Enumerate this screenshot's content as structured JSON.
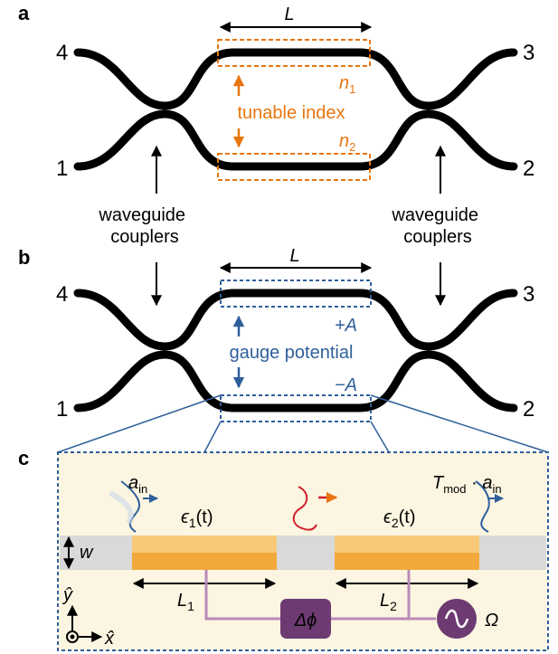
{
  "panels": {
    "a": {
      "letter": "a",
      "length_label": "L",
      "ports": {
        "p4": "4",
        "p3": "3",
        "p1": "1",
        "p2": "2"
      },
      "n1_base": "n",
      "n1_sub": "1",
      "n2_base": "n",
      "n2_sub": "2",
      "middle_label": "tunable index",
      "left_label_line1": "waveguide",
      "left_label_line2": "couplers",
      "right_label_line1": "waveguide",
      "right_label_line2": "couplers"
    },
    "b": {
      "letter": "b",
      "length_label": "L",
      "ports": {
        "p4": "4",
        "p3": "3",
        "p1": "1",
        "p2": "2"
      },
      "plus_label": "+A",
      "minus_label": "−A",
      "middle_label": "gauge potential"
    },
    "c": {
      "letter": "c",
      "a_in_base": "a",
      "a_in_sub": "in",
      "t_mod_base": "T",
      "t_mod_sub": "mod",
      "t_mod_dot": "·",
      "t_mod_a_base": "a",
      "t_mod_a_sub": "in",
      "eps1": "ϵ",
      "eps1_sub": "1",
      "eps1_arg": "(t)",
      "eps2": "ϵ",
      "eps2_sub": "2",
      "eps2_arg": "(t)",
      "w_label": "w",
      "l1_base": "L",
      "l1_sub": "1",
      "l2_base": "L",
      "l2_sub": "2",
      "phase_label": "Δϕ",
      "omega_label": "Ω",
      "y_axis": "ŷ",
      "x_axis": "x̂"
    }
  },
  "colors": {
    "orange": "#e8760f",
    "blue": "#2f5f9b",
    "red": "#d0202a",
    "panel_bg": "#fbf5e1",
    "modulator": "#f2a93b",
    "modulator_light": "#f8c978",
    "waveguide_gray": "#d9d9d9",
    "purple": "#6e3a72",
    "purple_line": "#b98ab7"
  }
}
